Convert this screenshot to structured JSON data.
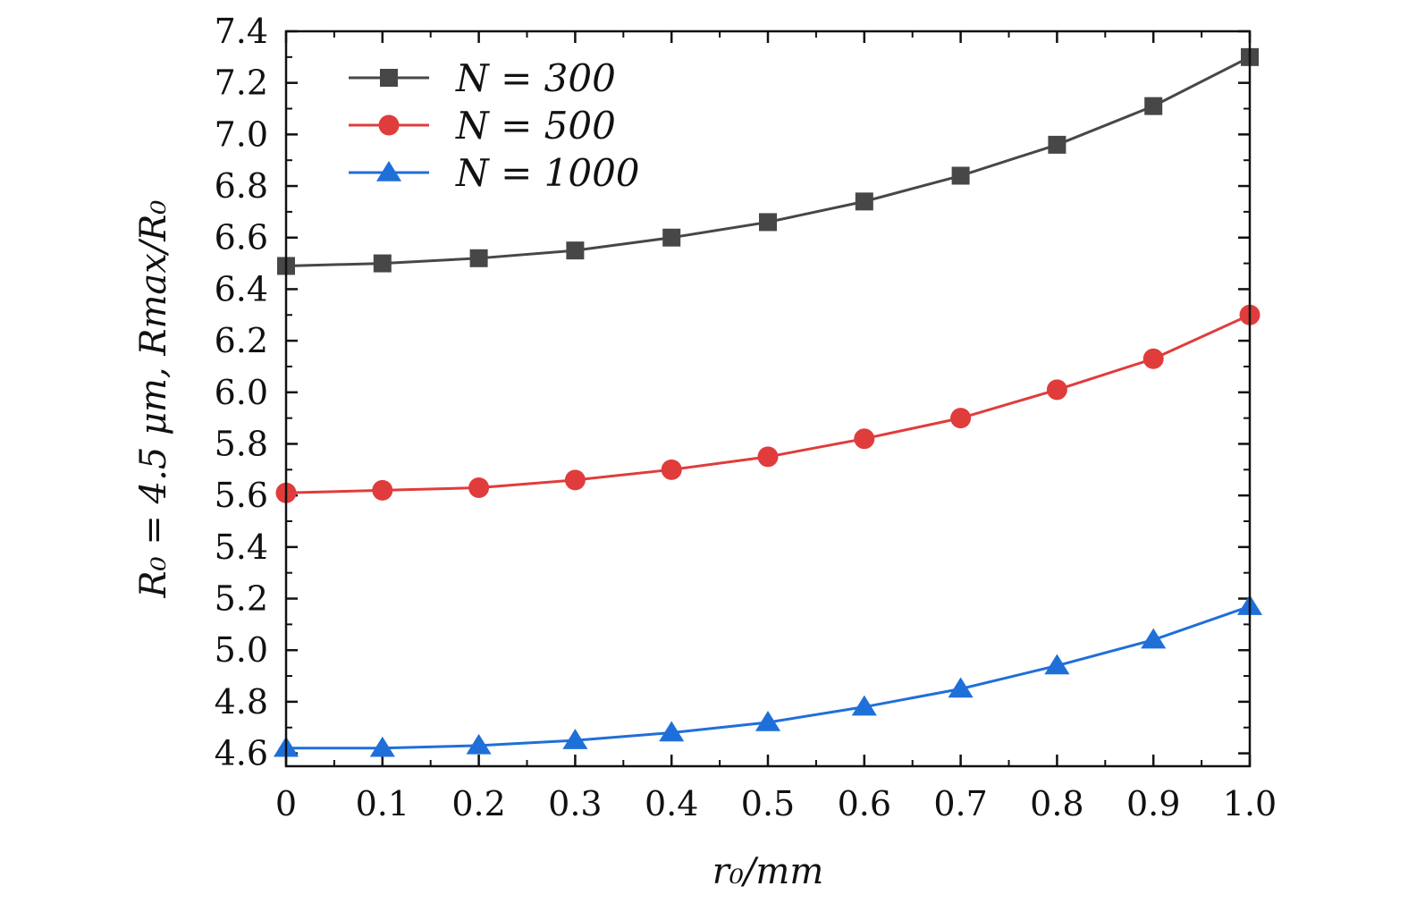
{
  "chart_data": {
    "type": "line",
    "title": "",
    "xlabel": "r₀/mm",
    "ylabel": "R₀ = 4.5 μm, Rmax/R₀",
    "xlim": [
      0,
      1.0
    ],
    "ylim": [
      4.55,
      7.4
    ],
    "x_ticks": [
      "0",
      "0.1",
      "0.2",
      "0.3",
      "0.4",
      "0.5",
      "0.6",
      "0.7",
      "0.8",
      "0.9",
      "1.0"
    ],
    "y_ticks": [
      "4.6",
      "4.8",
      "5.0",
      "5.2",
      "5.4",
      "5.6",
      "5.8",
      "6.0",
      "6.2",
      "6.4",
      "6.6",
      "6.8",
      "7.0",
      "7.2",
      "7.4"
    ],
    "grid": false,
    "legend_position": "top-left",
    "x": [
      0,
      0.1,
      0.2,
      0.3,
      0.4,
      0.5,
      0.6,
      0.7,
      0.8,
      0.9,
      1.0
    ],
    "series": [
      {
        "name": "N = 300",
        "marker": "square",
        "color": "#474747",
        "values": [
          6.49,
          6.5,
          6.52,
          6.55,
          6.6,
          6.66,
          6.74,
          6.84,
          6.96,
          7.11,
          7.3
        ]
      },
      {
        "name": "N = 500",
        "marker": "circle",
        "color": "#e03c3c",
        "values": [
          5.61,
          5.62,
          5.63,
          5.66,
          5.7,
          5.75,
          5.82,
          5.9,
          6.01,
          6.13,
          6.3
        ]
      },
      {
        "name": "N = 1000",
        "marker": "triangle",
        "color": "#1f6fd9",
        "values": [
          4.62,
          4.62,
          4.63,
          4.65,
          4.68,
          4.72,
          4.78,
          4.85,
          4.94,
          5.04,
          5.17
        ]
      }
    ]
  }
}
